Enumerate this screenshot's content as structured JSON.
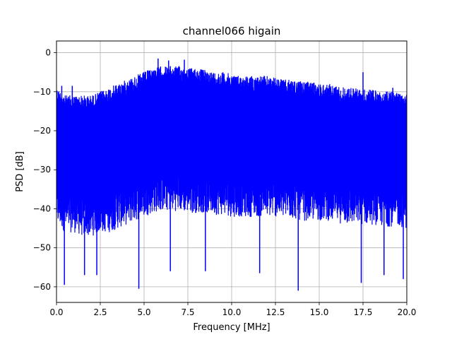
{
  "chart_data": {
    "type": "line",
    "title": "channel066 higain",
    "xlabel": "Frequency [MHz]",
    "ylabel": "PSD [dB]",
    "xlim": [
      0,
      20
    ],
    "ylim": [
      -64,
      3
    ],
    "xticks": [
      0.0,
      2.5,
      5.0,
      7.5,
      10.0,
      12.5,
      15.0,
      17.5,
      20.0
    ],
    "xtick_labels": [
      "0.0",
      "2.5",
      "5.0",
      "7.5",
      "10.0",
      "12.5",
      "15.0",
      "17.5",
      "20.0"
    ],
    "yticks": [
      0,
      -10,
      -20,
      -30,
      -40,
      -50,
      -60
    ],
    "ytick_labels": [
      "0",
      "−10",
      "−20",
      "−30",
      "−40",
      "−50",
      "−60"
    ],
    "grid": true,
    "legend": "none",
    "series": [
      {
        "color": "#0000ff",
        "envelope_x": [
          0.0,
          0.5,
          1.0,
          1.5,
          2.0,
          2.5,
          3.0,
          3.5,
          4.0,
          4.5,
          5.0,
          5.5,
          6.0,
          6.5,
          7.0,
          7.5,
          8.0,
          8.5,
          9.0,
          9.5,
          10.0,
          10.5,
          11.0,
          11.5,
          12.0,
          12.5,
          13.0,
          13.5,
          14.0,
          14.5,
          15.0,
          15.5,
          16.0,
          16.5,
          17.0,
          17.5,
          18.0,
          18.5,
          19.0,
          19.5,
          20.0
        ],
        "envelope_upper": [
          -9,
          -11,
          -11,
          -11,
          -11,
          -10,
          -9,
          -8,
          -7,
          -6,
          -5,
          -4,
          -3.5,
          -3.5,
          -3.5,
          -4,
          -4,
          -4.5,
          -5,
          -5,
          -5.5,
          -6,
          -6,
          -6,
          -6,
          -6.5,
          -7,
          -7,
          -7.5,
          -7.5,
          -8,
          -8,
          -8.5,
          -9,
          -9,
          -9.5,
          -9.5,
          -10,
          -10,
          -10,
          -10
        ],
        "envelope_lower": [
          -42,
          -44,
          -44,
          -45,
          -45,
          -44,
          -44,
          -43,
          -42,
          -41,
          -40,
          -39,
          -38.5,
          -38.5,
          -38.5,
          -39,
          -39,
          -39,
          -39.5,
          -39.5,
          -40,
          -40,
          -40,
          -40,
          -40,
          -40,
          -40.5,
          -40.5,
          -41,
          -41,
          -41,
          -41,
          -41.5,
          -42,
          -42,
          -42,
          -42,
          -42.5,
          -42.5,
          -42.5,
          -43
        ],
        "peaks": [
          [
            0.3,
            -8.5
          ],
          [
            0.9,
            -8.5
          ],
          [
            5.8,
            -1.5
          ],
          [
            6.4,
            -2.0
          ],
          [
            7.3,
            -1.8
          ],
          [
            17.5,
            -5.0
          ],
          [
            19.2,
            -9.0
          ]
        ],
        "dips": [
          [
            0.45,
            -59.5
          ],
          [
            1.6,
            -57
          ],
          [
            2.3,
            -57
          ],
          [
            4.7,
            -60.5
          ],
          [
            6.5,
            -56
          ],
          [
            8.5,
            -56
          ],
          [
            11.6,
            -56.5
          ],
          [
            13.8,
            -61
          ],
          [
            17.4,
            -59
          ],
          [
            18.7,
            -57
          ],
          [
            19.8,
            -58
          ]
        ]
      }
    ]
  }
}
